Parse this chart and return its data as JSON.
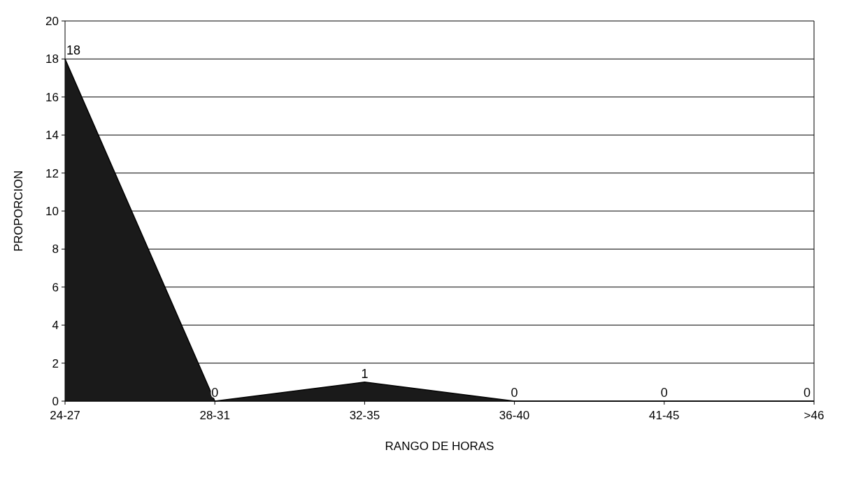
{
  "chart_data": {
    "type": "area",
    "xlabel": "RANGO DE HORAS",
    "ylabel": "PROPORCION",
    "categories": [
      "24-27",
      "28-31",
      "32-35",
      "36-40",
      "41-45",
      ">46"
    ],
    "values": [
      18,
      0,
      1,
      0,
      0,
      0
    ],
    "color": "#1a1a1a",
    "ylim": [
      0,
      20
    ],
    "yticks": [
      0,
      2,
      4,
      6,
      8,
      10,
      12,
      14,
      16,
      18,
      20
    ],
    "grid": "y",
    "data_labels": true
  }
}
